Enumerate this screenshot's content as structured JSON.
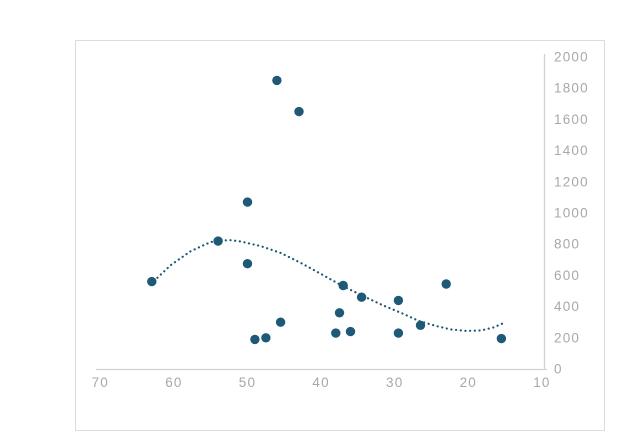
{
  "chart_data": {
    "type": "scatter",
    "title": "",
    "xlabel": "",
    "ylabel": "",
    "legend": false,
    "grid": false,
    "x_axis": {
      "min": 10,
      "max": 70,
      "reversed": true,
      "tick_step": 10,
      "ticks": [
        70,
        60,
        50,
        40,
        30,
        20,
        10
      ]
    },
    "y_axis": {
      "min": 0,
      "max": 2000,
      "side": "right",
      "tick_step": 200,
      "ticks": [
        2000,
        1800,
        1600,
        1400,
        1200,
        1000,
        800,
        600,
        400,
        200,
        0
      ]
    },
    "points": [
      [
        63,
        560
      ],
      [
        54,
        820
      ],
      [
        50,
        1070
      ],
      [
        50,
        675
      ],
      [
        49,
        190
      ],
      [
        47.5,
        200
      ],
      [
        46,
        1850
      ],
      [
        45.5,
        300
      ],
      [
        43,
        1650
      ],
      [
        38,
        230
      ],
      [
        37.5,
        360
      ],
      [
        37,
        535
      ],
      [
        36,
        240
      ],
      [
        34.5,
        460
      ],
      [
        29.5,
        440
      ],
      [
        29.5,
        230
      ],
      [
        26.5,
        280
      ],
      [
        23,
        545
      ],
      [
        15.5,
        195
      ]
    ],
    "trendline": {
      "style": "dotted",
      "points": [
        [
          62.7,
          564
        ],
        [
          60.4,
          667
        ],
        [
          57.7,
          756
        ],
        [
          55.0,
          814
        ],
        [
          52.5,
          827
        ],
        [
          50.9,
          817
        ],
        [
          48.2,
          788
        ],
        [
          45.5,
          744
        ],
        [
          42.7,
          679
        ],
        [
          40.0,
          609
        ],
        [
          37.2,
          535
        ],
        [
          34.3,
          468
        ],
        [
          31.7,
          410
        ],
        [
          29.1,
          359
        ],
        [
          26.7,
          308
        ],
        [
          24.4,
          276
        ],
        [
          22.4,
          254
        ],
        [
          20.3,
          244
        ],
        [
          18.3,
          247
        ],
        [
          16.6,
          266
        ],
        [
          15.3,
          292
        ]
      ]
    },
    "colors": {
      "series": "#1E5A78",
      "trendline": "#1E5A78",
      "axis_line": "#d2d2d2",
      "tick_label": "#a8a8a8",
      "frame_border": "#dcdcdc",
      "background": "#ffffff"
    }
  }
}
